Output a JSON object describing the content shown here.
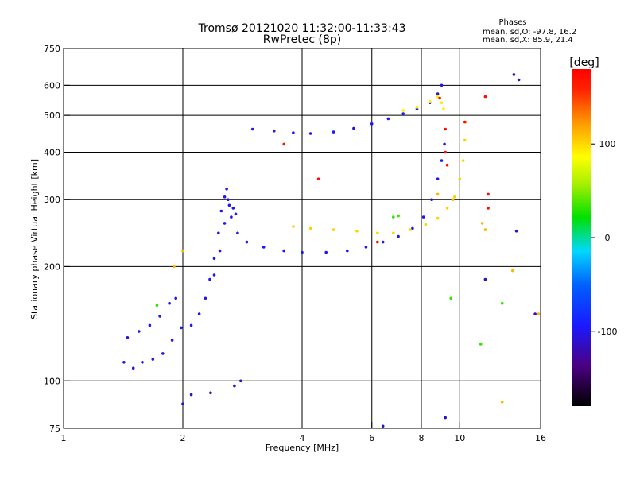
{
  "chart_data": {
    "type": "scatter",
    "title": "Tromsø 20121020 11:32:00-11:33:43",
    "subtitle": "RwPretec (8p)",
    "xlabel": "Frequency [MHz]",
    "ylabel": "Stationary phase Virtual Height [km]",
    "x_scale": "log",
    "y_scale": "log",
    "xlim": [
      1,
      16
    ],
    "ylim": [
      75,
      750
    ],
    "x_ticks": [
      1,
      2,
      4,
      6,
      8,
      10,
      16
    ],
    "x_tick_labels": [
      "1",
      "2",
      "4",
      "6",
      "8",
      "10",
      "16"
    ],
    "y_ticks": [
      75,
      100,
      200,
      300,
      400,
      500,
      600,
      750
    ],
    "y_tick_labels": [
      "75",
      "100",
      "200",
      "300",
      "400",
      "500",
      "600",
      "750"
    ],
    "grid": true,
    "stats": {
      "heading": "Phases",
      "line_o": "mean, sd,O: -97.8, 16.2",
      "line_x": "mean, sd,X:  85.9, 21.4"
    },
    "colorbar": {
      "label": "[deg]",
      "range": [
        -180,
        180
      ],
      "ticks": [
        100,
        0,
        -100
      ],
      "tick_labels": [
        "100",
        "0",
        "-100"
      ]
    },
    "traces": [
      {
        "phase": -100,
        "points": [
          [
            1.42,
            112
          ],
          [
            1.5,
            108
          ],
          [
            1.58,
            112
          ],
          [
            1.68,
            114
          ],
          [
            1.78,
            118
          ],
          [
            1.88,
            128
          ],
          [
            1.98,
            138
          ],
          [
            2.1,
            140
          ],
          [
            2.2,
            150
          ],
          [
            2.28,
            165
          ],
          [
            2.34,
            185
          ],
          [
            2.4,
            210
          ],
          [
            2.46,
            245
          ],
          [
            2.5,
            280
          ],
          [
            2.55,
            305
          ],
          [
            2.58,
            320
          ],
          [
            2.6,
            300
          ],
          [
            2.65,
            270
          ],
          [
            2.75,
            245
          ],
          [
            2.9,
            232
          ],
          [
            3.2,
            225
          ],
          [
            3.6,
            220
          ],
          [
            4.0,
            218
          ],
          [
            4.6,
            218
          ],
          [
            5.2,
            220
          ],
          [
            5.8,
            225
          ],
          [
            6.4,
            232
          ],
          [
            7.0,
            240
          ],
          [
            7.6,
            252
          ],
          [
            8.1,
            270
          ],
          [
            8.5,
            300
          ],
          [
            8.8,
            340
          ],
          [
            9.0,
            380
          ],
          [
            9.15,
            420
          ]
        ]
      },
      {
        "phase": -100,
        "points": [
          [
            1.45,
            130
          ],
          [
            1.55,
            135
          ],
          [
            1.65,
            140
          ],
          [
            1.75,
            148
          ],
          [
            1.85,
            160
          ],
          [
            1.92,
            165
          ]
        ]
      },
      {
        "phase": -100,
        "points": [
          [
            2.4,
            190
          ],
          [
            2.48,
            220
          ],
          [
            2.55,
            260
          ],
          [
            2.62,
            290
          ],
          [
            2.68,
            285
          ],
          [
            2.72,
            275
          ]
        ]
      },
      {
        "phase": 100,
        "points": [
          [
            3.8,
            255
          ],
          [
            4.2,
            252
          ],
          [
            4.8,
            250
          ],
          [
            5.5,
            248
          ],
          [
            6.2,
            245
          ],
          [
            6.8,
            245
          ],
          [
            7.5,
            250
          ],
          [
            8.2,
            258
          ],
          [
            8.8,
            268
          ],
          [
            9.3,
            285
          ],
          [
            9.7,
            305
          ],
          [
            10.0,
            340
          ],
          [
            10.2,
            380
          ],
          [
            10.3,
            430
          ],
          [
            10.35,
            480
          ]
        ]
      },
      {
        "phase": -100,
        "points": [
          [
            3.0,
            460
          ],
          [
            3.4,
            455
          ],
          [
            3.8,
            450
          ],
          [
            4.2,
            448
          ],
          [
            4.8,
            452
          ],
          [
            5.4,
            462
          ],
          [
            6.0,
            475
          ],
          [
            6.6,
            490
          ],
          [
            7.2,
            505
          ],
          [
            7.8,
            520
          ],
          [
            8.4,
            540
          ],
          [
            8.8,
            570
          ],
          [
            9.0,
            600
          ]
        ]
      },
      {
        "phase": 90,
        "points": [
          [
            7.2,
            515
          ],
          [
            7.8,
            525
          ],
          [
            8.4,
            545
          ],
          [
            8.8,
            560
          ],
          [
            9.0,
            540
          ],
          [
            9.1,
            520
          ]
        ]
      },
      {
        "phase": 170,
        "points": [
          [
            3.6,
            420
          ],
          [
            4.4,
            340
          ],
          [
            6.2,
            232
          ],
          [
            8.9,
            555
          ],
          [
            9.2,
            460
          ],
          [
            9.2,
            400
          ],
          [
            9.3,
            370
          ],
          [
            10.3,
            480
          ],
          [
            11.6,
            560
          ],
          [
            11.8,
            310
          ],
          [
            11.8,
            285
          ]
        ]
      },
      {
        "phase": 110,
        "points": [
          [
            1.9,
            200
          ],
          [
            2.0,
            220
          ],
          [
            8.8,
            310
          ],
          [
            9.6,
            300
          ],
          [
            11.4,
            260
          ],
          [
            11.6,
            250
          ],
          [
            13.6,
            195
          ],
          [
            15.8,
            150
          ],
          [
            12.8,
            88
          ]
        ]
      },
      {
        "phase": -110,
        "points": [
          [
            2.8,
            100
          ],
          [
            2.7,
            97
          ],
          [
            2.35,
            93
          ],
          [
            2.0,
            87
          ],
          [
            2.1,
            92
          ],
          [
            6.4,
            76
          ],
          [
            9.2,
            80
          ],
          [
            11.6,
            185
          ],
          [
            13.9,
            248
          ],
          [
            14.1,
            620
          ],
          [
            13.7,
            640
          ],
          [
            15.5,
            150
          ]
        ]
      },
      {
        "phase": 30,
        "points": [
          [
            1.72,
            158
          ],
          [
            6.8,
            270
          ],
          [
            7.0,
            272
          ],
          [
            9.5,
            165
          ],
          [
            11.3,
            125
          ],
          [
            12.8,
            160
          ]
        ]
      }
    ]
  }
}
